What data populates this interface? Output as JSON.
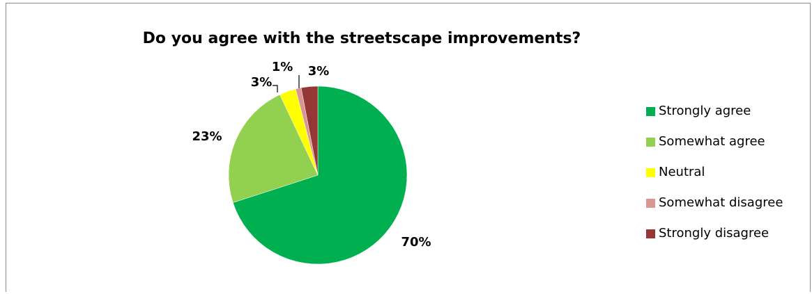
{
  "chart_data": {
    "type": "pie",
    "title": "Do you agree with the streetscape improvements?",
    "legend_position": "right",
    "slices": [
      {
        "name": "Strongly agree",
        "value": 70,
        "label": "70%",
        "color": "#00B050"
      },
      {
        "name": "Somewhat agree",
        "value": 23,
        "label": "23%",
        "color": "#92D050"
      },
      {
        "name": "Neutral",
        "value": 3,
        "label": "3%",
        "color": "#FFFF00"
      },
      {
        "name": "Somewhat disagree",
        "value": 1,
        "label": "1%",
        "color": "#DA9694"
      },
      {
        "name": "Strongly disagree",
        "value": 3,
        "label": "3%",
        "color": "#953735"
      }
    ]
  }
}
